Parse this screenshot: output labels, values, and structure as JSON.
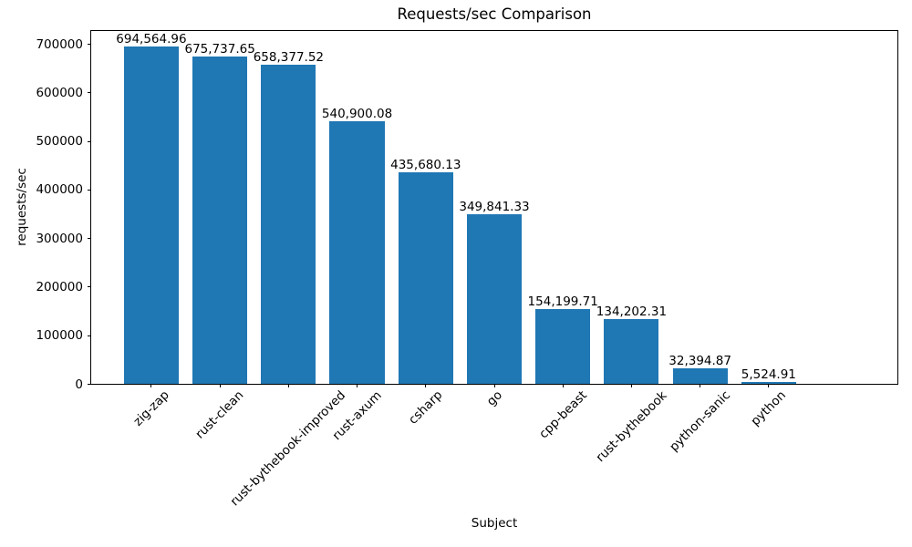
{
  "figure": {
    "background": "#ffffff"
  },
  "chart_data": {
    "type": "bar",
    "title": "Requests/sec Comparison",
    "xlabel": "Subject",
    "ylabel": "requests/sec",
    "categories": [
      "zig-zap",
      "rust-clean",
      "rust-bythebook-improved",
      "rust-axum",
      "csharp",
      "go",
      "cpp-beast",
      "rust-bythebook",
      "python-sanic",
      "python"
    ],
    "values": [
      694564.96,
      675737.65,
      658377.52,
      540900.08,
      435680.13,
      349841.33,
      154199.71,
      134202.31,
      32394.87,
      5524.91
    ],
    "value_labels": [
      "694,564.96",
      "675,737.65",
      "658,377.52",
      "540,900.08",
      "435,680.13",
      "349,841.33",
      "154,199.71",
      "134,202.31",
      "32,394.87",
      "5,524.91"
    ],
    "yticks": [
      0,
      100000,
      200000,
      300000,
      400000,
      500000,
      600000,
      700000
    ],
    "ytick_labels": [
      "0",
      "100000",
      "200000",
      "300000",
      "400000",
      "500000",
      "600000",
      "700000"
    ],
    "ylim": [
      0,
      729293
    ],
    "x_tick_rotation_deg": 45,
    "grid": false,
    "legend": "none",
    "bar_color": "#1f77b4",
    "axis_color": "#000000",
    "text_color": "#000000"
  }
}
